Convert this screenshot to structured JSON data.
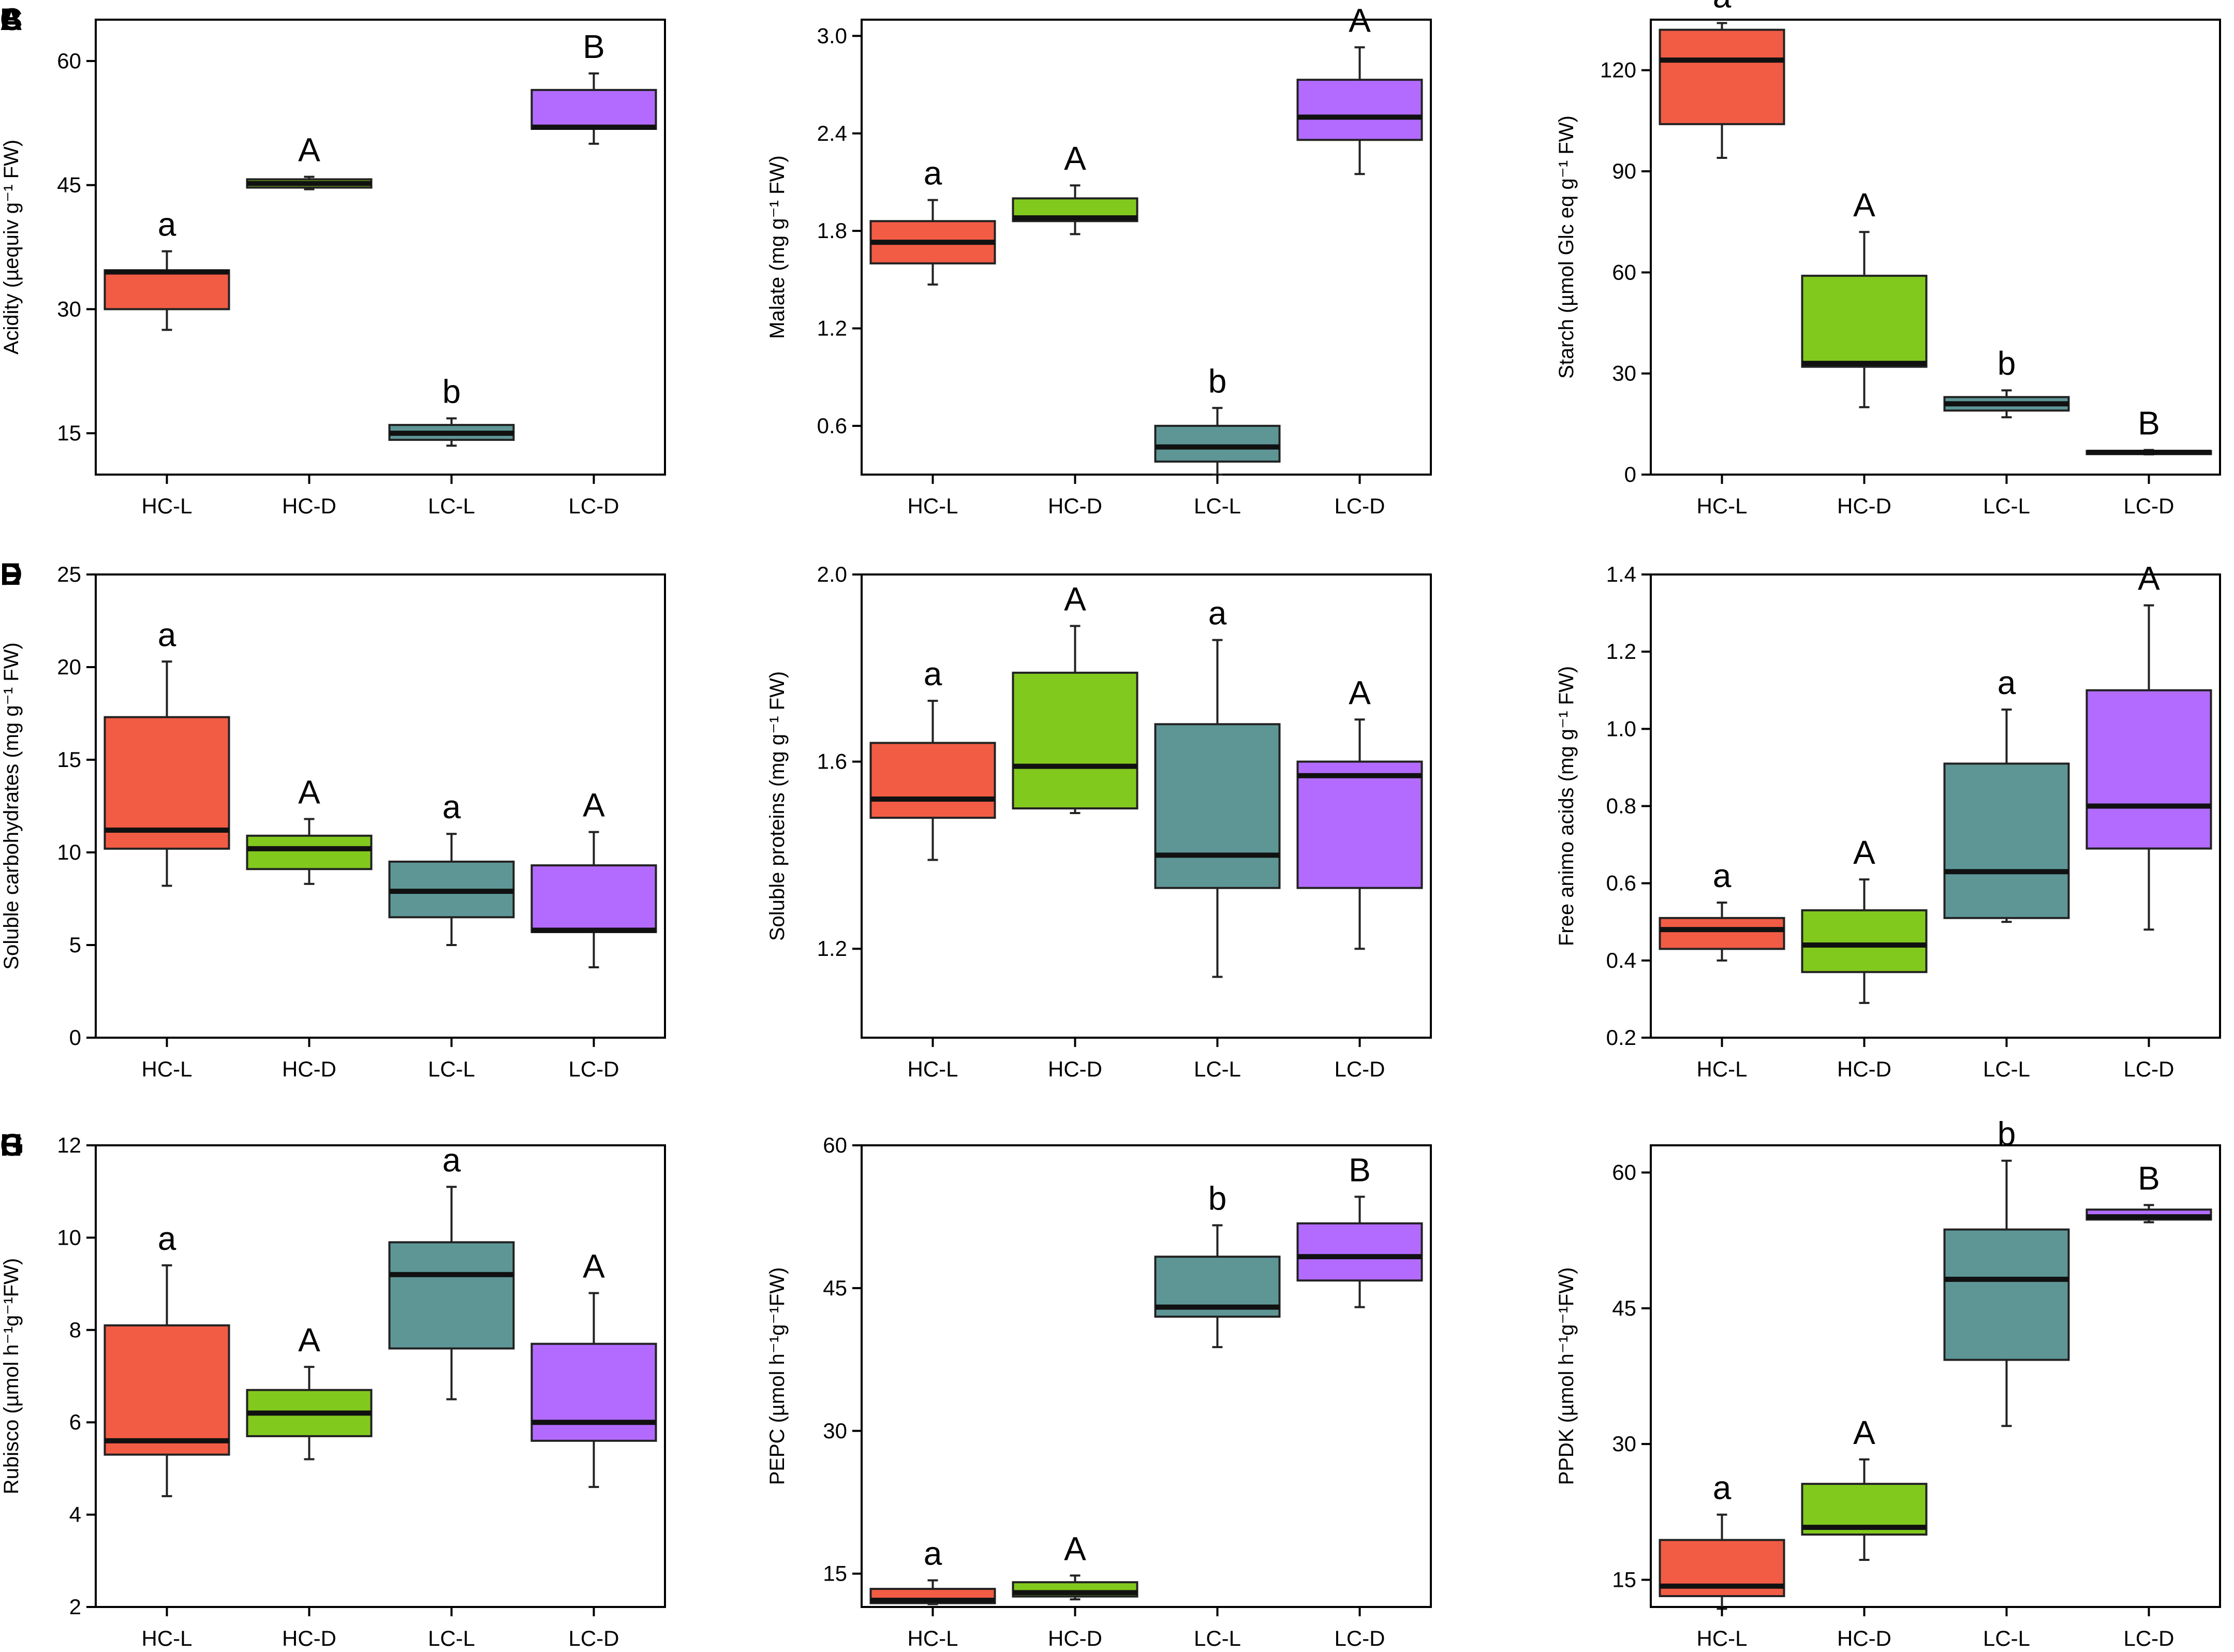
{
  "figure": {
    "categories": [
      "HC-L",
      "HC-D",
      "LC-L",
      "LC-D"
    ]
  },
  "colors": {
    "HC-L": "#f25c45",
    "HC-D": "#82c91e",
    "LC-L": "#5e9696",
    "LC-D": "#b36bff",
    "median": "#111111",
    "axis": "#000000"
  },
  "chart_data": [
    {
      "id": "A",
      "type": "box",
      "panel_label": "A",
      "ylabel": "Acidity (µequiv g⁻¹ FW)",
      "ylim": [
        10,
        65
      ],
      "yticks": [
        15,
        30,
        45,
        60
      ],
      "yticklabels": [
        "15",
        "30",
        "45",
        "60"
      ],
      "categories": [
        "HC-L",
        "HC-D",
        "LC-L",
        "LC-D"
      ],
      "boxes": [
        {
          "category": "HC-L",
          "min": 27.5,
          "q1": 30,
          "median": 34.5,
          "q3": 34.7,
          "max": 37,
          "letter": "a"
        },
        {
          "category": "HC-D",
          "min": 44.5,
          "q1": 44.7,
          "median": 45.2,
          "q3": 45.7,
          "max": 46,
          "letter": "A"
        },
        {
          "category": "LC-L",
          "min": 13.5,
          "q1": 14.2,
          "median": 15,
          "q3": 16,
          "max": 16.8,
          "letter": "b"
        },
        {
          "category": "LC-D",
          "min": 50,
          "q1": 51.8,
          "median": 52,
          "q3": 56.5,
          "max": 58.5,
          "letter": "B"
        }
      ]
    },
    {
      "id": "B",
      "type": "box",
      "panel_label": "B",
      "ylabel": "Malate  (mg g⁻¹ FW)",
      "ylim": [
        0.3,
        3.1
      ],
      "yticks": [
        0.6,
        1.2,
        1.8,
        2.4,
        3.0
      ],
      "yticklabels": [
        "0.6",
        "1.2",
        "1.8",
        "2.4",
        "3.0"
      ],
      "categories": [
        "HC-L",
        "HC-D",
        "LC-L",
        "LC-D"
      ],
      "boxes": [
        {
          "category": "HC-L",
          "min": 1.47,
          "q1": 1.6,
          "median": 1.73,
          "q3": 1.86,
          "max": 1.99,
          "letter": "a"
        },
        {
          "category": "HC-D",
          "min": 1.78,
          "q1": 1.86,
          "median": 1.88,
          "q3": 2.0,
          "max": 2.08,
          "letter": "A"
        },
        {
          "category": "LC-L",
          "min": 0.3,
          "q1": 0.38,
          "median": 0.47,
          "q3": 0.6,
          "max": 0.71,
          "letter": "b"
        },
        {
          "category": "LC-D",
          "min": 2.15,
          "q1": 2.36,
          "median": 2.5,
          "q3": 2.73,
          "max": 2.93,
          "letter": "A"
        }
      ]
    },
    {
      "id": "C",
      "type": "box",
      "panel_label": "C",
      "ylabel": "Starch (µmol Glc eq g⁻¹ FW)",
      "ylim": [
        0,
        135
      ],
      "yticks": [
        0,
        30,
        60,
        90,
        120
      ],
      "yticklabels": [
        "0",
        "30",
        "60",
        "90",
        "120"
      ],
      "categories": [
        "HC-L",
        "HC-D",
        "LC-L",
        "LC-D"
      ],
      "boxes": [
        {
          "category": "HC-L",
          "min": 94,
          "q1": 104,
          "median": 123,
          "q3": 132,
          "max": 134,
          "letter": "a"
        },
        {
          "category": "HC-D",
          "min": 20,
          "q1": 32,
          "median": 33,
          "q3": 59,
          "max": 72,
          "letter": "A"
        },
        {
          "category": "LC-L",
          "min": 17,
          "q1": 19,
          "median": 21,
          "q3": 23,
          "max": 25,
          "letter": "b"
        },
        {
          "category": "LC-D",
          "min": 6,
          "q1": 6.3,
          "median": 6.6,
          "q3": 7,
          "max": 7.3,
          "letter": "B"
        }
      ]
    },
    {
      "id": "D",
      "type": "box",
      "panel_label": "D",
      "ylabel": "Soluble carbohydrates (mg g⁻¹ FW)",
      "ylim": [
        0,
        25
      ],
      "yticks": [
        0,
        5,
        10,
        15,
        20,
        25
      ],
      "yticklabels": [
        "0",
        "5",
        "10",
        "15",
        "20",
        "25"
      ],
      "categories": [
        "HC-L",
        "HC-D",
        "LC-L",
        "LC-D"
      ],
      "boxes": [
        {
          "category": "HC-L",
          "min": 8.2,
          "q1": 10.2,
          "median": 11.2,
          "q3": 17.3,
          "max": 20.3,
          "letter": "a"
        },
        {
          "category": "HC-D",
          "min": 8.3,
          "q1": 9.1,
          "median": 10.2,
          "q3": 10.9,
          "max": 11.8,
          "letter": "A"
        },
        {
          "category": "LC-L",
          "min": 5,
          "q1": 6.5,
          "median": 7.9,
          "q3": 9.5,
          "max": 11,
          "letter": "a"
        },
        {
          "category": "LC-D",
          "min": 3.8,
          "q1": 5.7,
          "median": 5.8,
          "q3": 9.3,
          "max": 11.1,
          "letter": "A"
        }
      ]
    },
    {
      "id": "E",
      "type": "box",
      "panel_label": "E",
      "ylabel": "Soluble proteins (mg g⁻¹ FW)",
      "ylim": [
        1.01,
        2.0
      ],
      "yticks": [
        1.2,
        1.6,
        2.0
      ],
      "yticklabels": [
        "1.2",
        "1.6",
        "2.0"
      ],
      "categories": [
        "HC-L",
        "HC-D",
        "LC-L",
        "LC-D"
      ],
      "boxes": [
        {
          "category": "HC-L",
          "min": 1.39,
          "q1": 1.48,
          "median": 1.52,
          "q3": 1.64,
          "max": 1.73,
          "letter": "a"
        },
        {
          "category": "HC-D",
          "min": 1.49,
          "q1": 1.5,
          "median": 1.59,
          "q3": 1.79,
          "max": 1.89,
          "letter": "A"
        },
        {
          "category": "LC-L",
          "min": 1.14,
          "q1": 1.33,
          "median": 1.4,
          "q3": 1.68,
          "max": 1.86,
          "letter": "a"
        },
        {
          "category": "LC-D",
          "min": 1.2,
          "q1": 1.33,
          "median": 1.57,
          "q3": 1.6,
          "max": 1.69,
          "letter": "A"
        }
      ]
    },
    {
      "id": "F",
      "type": "box",
      "panel_label": "F",
      "ylabel": "Free animo acids (mg g⁻¹ FW)",
      "ylim": [
        0.2,
        1.4
      ],
      "yticks": [
        0.2,
        0.4,
        0.6,
        0.8,
        1.0,
        1.2,
        1.4
      ],
      "yticklabels": [
        "0.2",
        "0.4",
        "0.6",
        "0.8",
        "1.0",
        "1.2",
        "1.4"
      ],
      "categories": [
        "HC-L",
        "HC-D",
        "LC-L",
        "LC-D"
      ],
      "boxes": [
        {
          "category": "HC-L",
          "min": 0.4,
          "q1": 0.43,
          "median": 0.48,
          "q3": 0.51,
          "max": 0.55,
          "letter": "a"
        },
        {
          "category": "HC-D",
          "min": 0.29,
          "q1": 0.37,
          "median": 0.44,
          "q3": 0.53,
          "max": 0.61,
          "letter": "A"
        },
        {
          "category": "LC-L",
          "min": 0.5,
          "q1": 0.51,
          "median": 0.63,
          "q3": 0.91,
          "max": 1.05,
          "letter": "a"
        },
        {
          "category": "LC-D",
          "min": 0.48,
          "q1": 0.69,
          "median": 0.8,
          "q3": 1.1,
          "max": 1.32,
          "letter": "A"
        }
      ]
    },
    {
      "id": "G",
      "type": "box",
      "panel_label": "G",
      "ylabel": "Rubisco (µmol h⁻¹g⁻¹FW)",
      "ylim": [
        2,
        12
      ],
      "yticks": [
        2,
        4,
        6,
        8,
        10,
        12
      ],
      "yticklabels": [
        "2",
        "4",
        "6",
        "8",
        "10",
        "12"
      ],
      "categories": [
        "HC-L",
        "HC-D",
        "LC-L",
        "LC-D"
      ],
      "boxes": [
        {
          "category": "HC-L",
          "min": 4.4,
          "q1": 5.3,
          "median": 5.6,
          "q3": 8.1,
          "max": 9.4,
          "letter": "a"
        },
        {
          "category": "HC-D",
          "min": 5.2,
          "q1": 5.7,
          "median": 6.2,
          "q3": 6.7,
          "max": 7.2,
          "letter": "A"
        },
        {
          "category": "LC-L",
          "min": 6.5,
          "q1": 7.6,
          "median": 9.2,
          "q3": 9.9,
          "max": 11.1,
          "letter": "a"
        },
        {
          "category": "LC-D",
          "min": 4.6,
          "q1": 5.6,
          "median": 6.0,
          "q3": 7.7,
          "max": 8.8,
          "letter": "A"
        }
      ]
    },
    {
      "id": "H",
      "type": "box",
      "panel_label": "H",
      "ylabel": "PEPC (µmol h⁻¹g⁻¹FW)",
      "ylim": [
        11.5,
        60
      ],
      "yticks": [
        15,
        30,
        45,
        60
      ],
      "yticklabels": [
        "15",
        "30",
        "45",
        "60"
      ],
      "categories": [
        "HC-L",
        "HC-D",
        "LC-L",
        "LC-D"
      ],
      "boxes": [
        {
          "category": "HC-L",
          "min": 11.8,
          "q1": 11.9,
          "median": 12.2,
          "q3": 13.4,
          "max": 14.3,
          "letter": "a"
        },
        {
          "category": "HC-D",
          "min": 12.3,
          "q1": 12.6,
          "median": 13.0,
          "q3": 14.1,
          "max": 14.8,
          "letter": "A"
        },
        {
          "category": "LC-L",
          "min": 38.8,
          "q1": 42.0,
          "median": 43.0,
          "q3": 48.3,
          "max": 51.6,
          "letter": "b"
        },
        {
          "category": "LC-D",
          "min": 43.0,
          "q1": 45.8,
          "median": 48.3,
          "q3": 51.8,
          "max": 54.6,
          "letter": "B"
        }
      ]
    },
    {
      "id": "I",
      "type": "box",
      "panel_label": "I",
      "ylabel": "PPDK (µmol h⁻¹g⁻¹FW)",
      "ylim": [
        12,
        63
      ],
      "yticks": [
        15,
        30,
        45,
        60
      ],
      "yticklabels": [
        "15",
        "30",
        "45",
        "60"
      ],
      "categories": [
        "HC-L",
        "HC-D",
        "LC-L",
        "LC-D"
      ],
      "boxes": [
        {
          "category": "HC-L",
          "min": 11.8,
          "q1": 13.2,
          "median": 14.3,
          "q3": 19.4,
          "max": 22.2,
          "letter": "a"
        },
        {
          "category": "HC-D",
          "min": 17.2,
          "q1": 20.0,
          "median": 20.8,
          "q3": 25.6,
          "max": 28.3,
          "letter": "A"
        },
        {
          "category": "LC-L",
          "min": 32.0,
          "q1": 39.3,
          "median": 48.2,
          "q3": 53.7,
          "max": 61.3,
          "letter": "b"
        },
        {
          "category": "LC-D",
          "min": 54.5,
          "q1": 54.8,
          "median": 55.1,
          "q3": 55.9,
          "max": 56.4,
          "letter": "B"
        }
      ]
    }
  ]
}
